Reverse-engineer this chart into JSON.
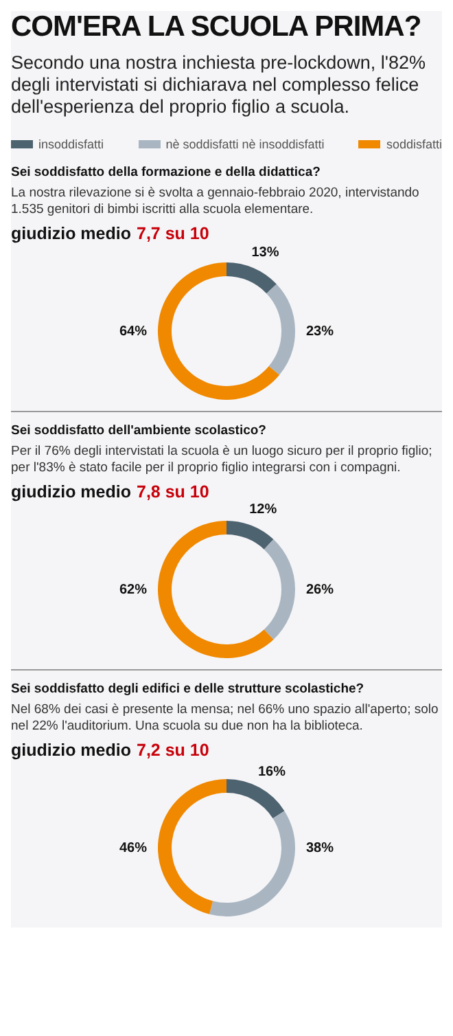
{
  "chart_data": [
    {
      "type": "other",
      "title": "COM'ERA LA SCUOLA PRIMA?",
      "subtitle": "Secondo una nostra inchiesta pre-lockdown, l'82% degli intervistati si dichiarava nel complesso felice dell'esperienza del proprio figlio a scuola."
    },
    {
      "type": "donut",
      "title": "Sei soddisfatto della formazione e della didattica?",
      "subtitle": "La nostra rilevazione si è svolta a gennaio-febbraio 2020, intervistando 1.535 genitori di bimbi iscritti alla scuola elementare.",
      "annotations": [
        "giudizio medio",
        "7,7 su 10"
      ],
      "categories": [
        "insoddisfatti",
        "nè soddisfatti nè insoddisfatti",
        "soddisfatti"
      ],
      "values": [
        13,
        23,
        64
      ],
      "value_labels": [
        "13%",
        "23%",
        "64%"
      ],
      "colors": [
        "#4e6370",
        "#a9b6c2",
        "#f08800"
      ],
      "legend": "top"
    },
    {
      "type": "donut",
      "title": "Sei soddisfatto dell'ambiente scolastico?",
      "subtitle": "Per il 76% degli intervistati la scuola è un luogo sicuro per il proprio figlio; per l'83% è stato facile per il proprio figlio integrarsi con i compagni.",
      "annotations": [
        "giudizio medio",
        "7,8 su 10"
      ],
      "categories": [
        null,
        null,
        null
      ],
      "values": [
        12,
        26,
        62
      ],
      "value_labels": [
        "12%",
        "26%",
        "62%"
      ],
      "colors": [
        "#4e6370",
        "#a9b6c2",
        "#f08800"
      ]
    },
    {
      "type": "donut",
      "title": "Sei soddisfatto degli edifici e delle strutture scolastiche?",
      "subtitle": "Nel 68% dei casi è presente la mensa; nel 66% uno spazio all'aperto; solo nel 22% l'auditorium. Una scuola su due non ha la biblioteca.",
      "annotations": [
        "giudizio medio",
        "7,2 su 10"
      ],
      "categories": [
        null,
        null,
        null
      ],
      "values": [
        16,
        38,
        46
      ],
      "value_labels": [
        "16%",
        "38%",
        "46%"
      ],
      "colors": [
        "#4e6370",
        "#a9b6c2",
        "#f08800"
      ]
    }
  ]
}
